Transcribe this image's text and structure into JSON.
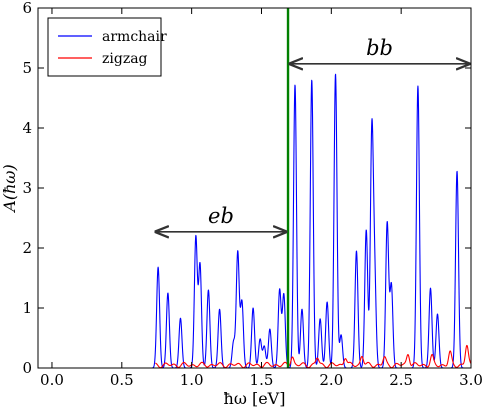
{
  "chart_data": {
    "type": "line",
    "xlabel": "ħω [eV]",
    "ylabel": "A(ħω)",
    "xlim": [
      -0.1,
      3.0
    ],
    "ylim": [
      0,
      6
    ],
    "xticks": [
      0.0,
      0.5,
      1.0,
      1.5,
      2.0,
      2.5,
      3.0
    ],
    "xtick_labels": [
      "0.0",
      "0.5",
      "1.0",
      "1.5",
      "2.0",
      "2.5",
      "3.0"
    ],
    "yticks": [
      0,
      1,
      2,
      3,
      4,
      5,
      6
    ],
    "ytick_labels": [
      "0",
      "1",
      "2",
      "3",
      "4",
      "5",
      "6"
    ],
    "grid": false,
    "legend": {
      "placement": "top-left",
      "entries": [
        "armchair",
        "zigzag"
      ]
    },
    "series": [
      {
        "name": "armchair",
        "color": "#0000ff",
        "peaks": [
          {
            "x": 0.76,
            "height": 1.68
          },
          {
            "x": 0.83,
            "height": 1.25
          },
          {
            "x": 0.92,
            "height": 0.83
          },
          {
            "x": 1.03,
            "height": 2.18
          },
          {
            "x": 1.06,
            "height": 1.72
          },
          {
            "x": 1.12,
            "height": 1.3
          },
          {
            "x": 1.2,
            "height": 0.98
          },
          {
            "x": 1.3,
            "height": 0.43
          },
          {
            "x": 1.33,
            "height": 1.93
          },
          {
            "x": 1.36,
            "height": 1.1
          },
          {
            "x": 1.44,
            "height": 1.0
          },
          {
            "x": 1.49,
            "height": 0.48
          },
          {
            "x": 1.52,
            "height": 0.36
          },
          {
            "x": 1.56,
            "height": 0.65
          },
          {
            "x": 1.63,
            "height": 1.3
          },
          {
            "x": 1.66,
            "height": 1.22
          },
          {
            "x": 1.74,
            "height": 4.72
          },
          {
            "x": 1.79,
            "height": 0.98
          },
          {
            "x": 1.86,
            "height": 4.8
          },
          {
            "x": 1.92,
            "height": 0.82
          },
          {
            "x": 1.97,
            "height": 1.1
          },
          {
            "x": 2.03,
            "height": 4.9
          },
          {
            "x": 2.07,
            "height": 0.55
          },
          {
            "x": 2.18,
            "height": 1.95
          },
          {
            "x": 2.25,
            "height": 2.3
          },
          {
            "x": 2.29,
            "height": 3.88
          },
          {
            "x": 2.31,
            "height": 1.48
          },
          {
            "x": 2.4,
            "height": 2.42
          },
          {
            "x": 2.43,
            "height": 1.38
          },
          {
            "x": 2.62,
            "height": 4.7
          },
          {
            "x": 2.71,
            "height": 1.33
          },
          {
            "x": 2.76,
            "height": 0.9
          },
          {
            "x": 2.9,
            "height": 3.28
          }
        ]
      },
      {
        "name": "zigzag",
        "color": "#ff0000",
        "baseline": 0.05,
        "peaks": [
          {
            "x": 1.72,
            "height": 0.15
          },
          {
            "x": 1.9,
            "height": 0.12
          },
          {
            "x": 2.1,
            "height": 0.14
          },
          {
            "x": 2.22,
            "height": 0.16
          },
          {
            "x": 2.38,
            "height": 0.12
          },
          {
            "x": 2.55,
            "height": 0.2
          },
          {
            "x": 2.72,
            "height": 0.14
          },
          {
            "x": 2.85,
            "height": 0.2
          },
          {
            "x": 2.97,
            "height": 0.32
          }
        ]
      }
    ],
    "vline": {
      "x": 1.69,
      "color": "#008000"
    },
    "annotations": [
      {
        "text": "eb",
        "from_x": 0.73,
        "to_x": 1.69,
        "y": 2.27
      },
      {
        "text": "bb",
        "from_x": 1.69,
        "to_x": 3.0,
        "y": 5.07
      }
    ],
    "axis_label_x": "ħω [eV]",
    "axis_label_y_base": "A(",
    "axis_label_y_arg": "ħω",
    "axis_label_y_end": ")"
  }
}
